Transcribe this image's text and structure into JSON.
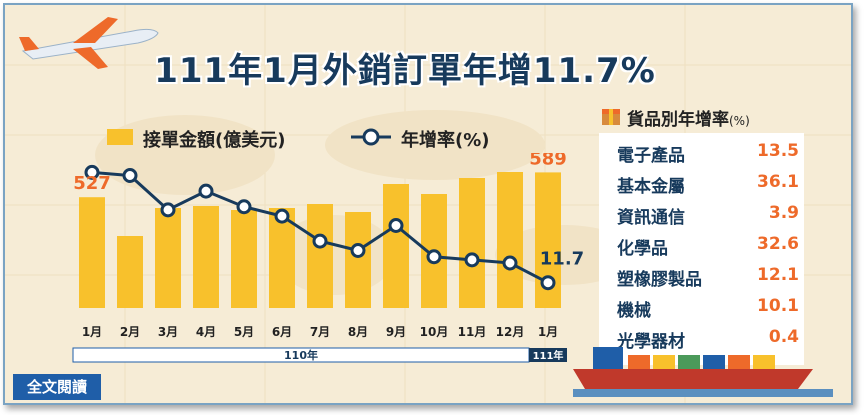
{
  "title": "111年1月外銷訂單年增11.7%",
  "legend": {
    "bar_label": "接單金額(億美元)",
    "line_label": "年增率(%)"
  },
  "chart_data": {
    "type": "bar",
    "categories": [
      "1月",
      "2月",
      "3月",
      "4月",
      "5月",
      "6月",
      "7月",
      "8月",
      "9月",
      "10月",
      "11月",
      "12月",
      "1月"
    ],
    "year_groups": [
      {
        "label": "110年",
        "span": 12
      },
      {
        "label": "111年",
        "span": 1
      }
    ],
    "series": [
      {
        "name": "接單金額(億美元)",
        "type": "bar",
        "values": [
          527,
          430,
          500,
          505,
          495,
          500,
          510,
          490,
          560,
          535,
          575,
          590,
          589
        ]
      },
      {
        "name": "年增率(%)",
        "type": "line",
        "values": [
          47,
          46,
          35,
          41,
          36,
          33,
          25,
          22,
          30,
          20,
          19,
          18,
          11.7
        ]
      }
    ],
    "point_labels": [
      {
        "series": 0,
        "index": 0,
        "text": "527"
      },
      {
        "series": 0,
        "index": 12,
        "text": "589"
      },
      {
        "series": 1,
        "index": 12,
        "text": "11.7"
      }
    ],
    "colors": {
      "bar": "#f8c12c",
      "line": "#173a5c",
      "label": "#ee6a2a"
    }
  },
  "panel": {
    "title": "貨品別年增率",
    "unit": "(%)",
    "rows": [
      {
        "name": "電子產品",
        "value": "13.5"
      },
      {
        "name": "基本金屬",
        "value": "36.1"
      },
      {
        "name": "資訊通信",
        "value": "3.9"
      },
      {
        "name": "化學品",
        "value": "32.6"
      },
      {
        "name": "塑橡膠製品",
        "value": "12.1"
      },
      {
        "name": "機械",
        "value": "10.1"
      },
      {
        "name": "光學器材",
        "value": "0.4"
      }
    ]
  },
  "button": {
    "label": "全文閱讀"
  },
  "icons": [
    "airplane-icon",
    "box-icon",
    "cargo-ship-icon"
  ]
}
